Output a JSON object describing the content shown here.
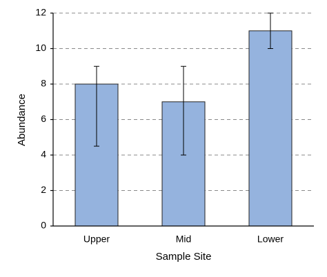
{
  "chart_data": {
    "type": "bar",
    "x_label": "Sample Site",
    "y_label": "Abundance",
    "categories": [
      "Upper",
      "Mid",
      "Lower"
    ],
    "values": [
      8,
      7,
      11
    ],
    "errors_minus": [
      3.5,
      3,
      1
    ],
    "errors_plus": [
      1,
      2,
      1
    ],
    "color": "#95b3de",
    "ylim": [
      0,
      12
    ],
    "yticks": [
      0,
      2,
      4,
      6,
      8,
      10,
      12
    ],
    "grid": true
  }
}
